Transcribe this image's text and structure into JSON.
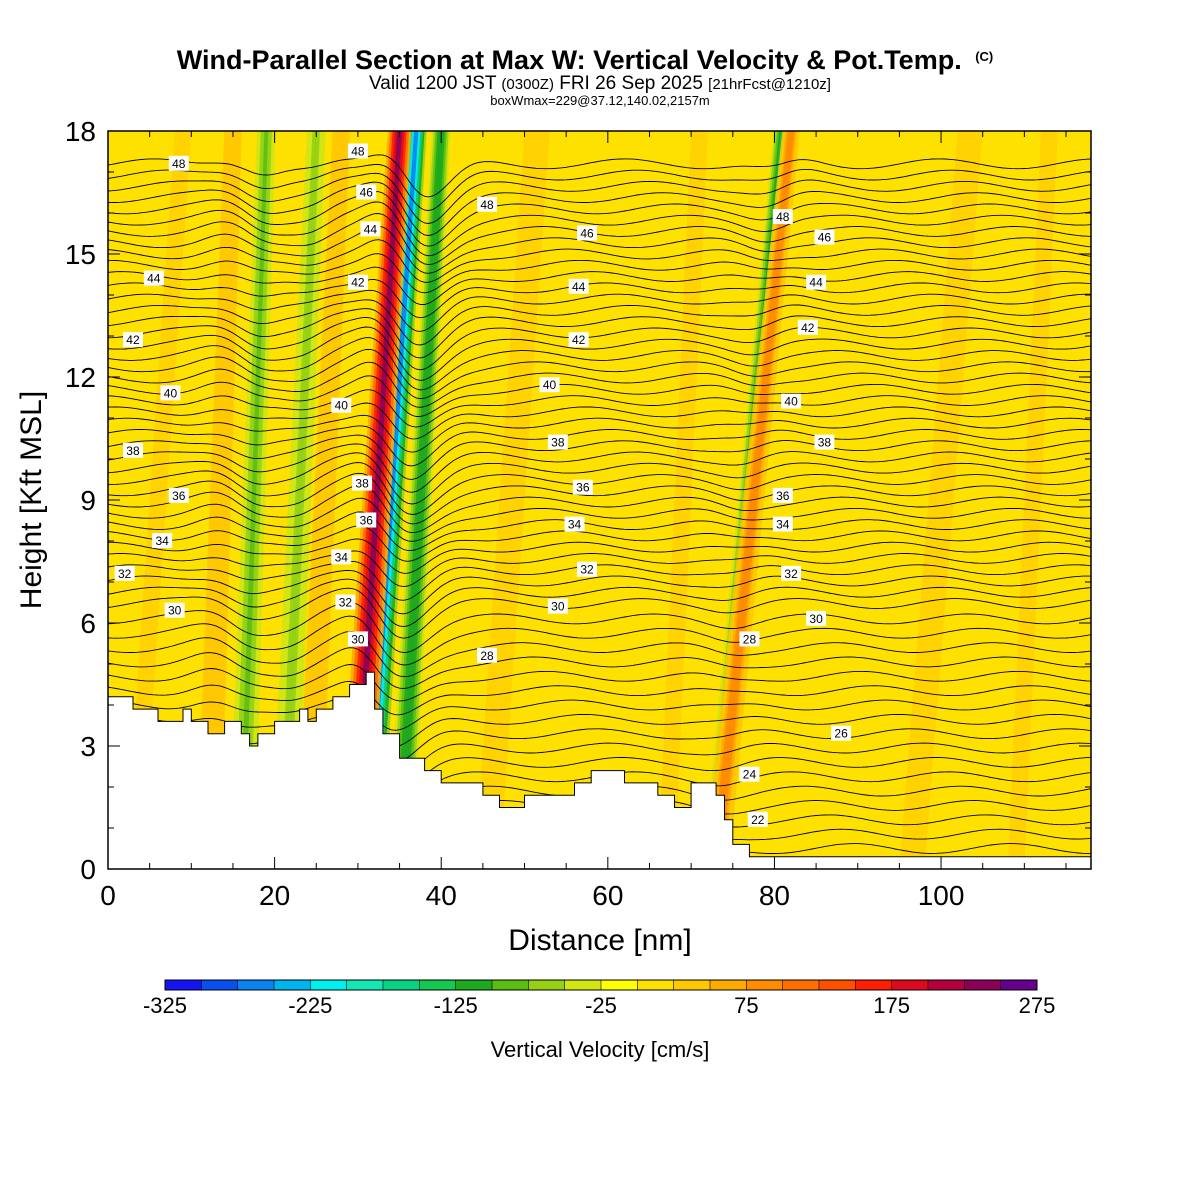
{
  "chart_data": {
    "type": "heatmap",
    "title": {
      "main": "Wind-Parallel Section at Max W: Vertical Velocity & Pot.Temp.",
      "copyright": "(C)",
      "valid_prefix": "Valid 1200 JST",
      "valid_utc": "(0300Z)",
      "valid_date": "FRI 26 Sep 2025",
      "forecast": "[21hrFcst@1210z]",
      "box_info": "boxWmax=229@37.12,140.02,2157m"
    },
    "xlabel": "Distance [nm]",
    "ylabel": "Height [Kft MSL]",
    "xlim": [
      0,
      118
    ],
    "ylim": [
      0,
      18
    ],
    "x_ticks": [
      0,
      20,
      40,
      60,
      80,
      100
    ],
    "y_ticks": [
      0,
      3,
      6,
      9,
      12,
      15,
      18
    ],
    "colorbar": {
      "title": "Vertical Velocity [cm/s]",
      "min": -325,
      "max": 275,
      "step": 25,
      "tick_labels": [
        "-325",
        "-225",
        "-125",
        "-25",
        "75",
        "175",
        "275"
      ],
      "tick_values": [
        -325,
        -225,
        -125,
        -25,
        75,
        175,
        275
      ],
      "colors": [
        "#1414f0",
        "#0a50f0",
        "#0a82f0",
        "#00b4f0",
        "#00f0f0",
        "#14e6b4",
        "#0ad282",
        "#14c850",
        "#1eaa1e",
        "#5abe14",
        "#96d214",
        "#d2e614",
        "#ffff00",
        "#ffe100",
        "#ffc800",
        "#ffaa00",
        "#ff8c00",
        "#ff6e00",
        "#ff5000",
        "#ff1e00",
        "#dc0a1e",
        "#b4003c",
        "#8c005a",
        "#64008c"
      ]
    },
    "updrafts": [
      {
        "x_bottom": 29.5,
        "x_top": 35.0,
        "peak_cm_s": 229,
        "height_kft": 7.1
      },
      {
        "x_bottom": 73.0,
        "x_top": 82.0,
        "peak_cm_s": 100,
        "height_kft": 5.0
      },
      {
        "x_bottom": 12.0,
        "x_top": 15.0,
        "peak_cm_s": 50,
        "height_kft": 10.0
      },
      {
        "x_bottom": 24.0,
        "x_top": 28.0,
        "peak_cm_s": 40,
        "height_kft": 10.0
      }
    ],
    "downdrafts": [
      {
        "x_bottom": 31.0,
        "x_top": 37.0,
        "peak_cm_s": -260,
        "height_kft": 12.0
      },
      {
        "x_bottom": 35.0,
        "x_top": 40.0,
        "peak_cm_s": -120,
        "height_kft": 10.0
      },
      {
        "x_bottom": 73.0,
        "x_top": 81.0,
        "peak_cm_s": -130,
        "height_kft": 10.0
      },
      {
        "x_bottom": 16.0,
        "x_top": 19.0,
        "peak_cm_s": -80,
        "height_kft": 10.0
      },
      {
        "x_bottom": 21.0,
        "x_top": 25.0,
        "peak_cm_s": -70,
        "height_kft": 10.0
      }
    ],
    "terrain": {
      "x": [
        0,
        3,
        3,
        6,
        6,
        9,
        9,
        10,
        10,
        12,
        12,
        14,
        14,
        16,
        16,
        17,
        17,
        18,
        18,
        20,
        20,
        23,
        23,
        24,
        24,
        25,
        25,
        27,
        27,
        29,
        29,
        31,
        31,
        32,
        32,
        33,
        33,
        35,
        35,
        38,
        38,
        40,
        40,
        45,
        45,
        47,
        47,
        50,
        50,
        56,
        56,
        58,
        58,
        62,
        62,
        66,
        66,
        68,
        68,
        70,
        70,
        73,
        73,
        74,
        74,
        75,
        75,
        77,
        77,
        80,
        80,
        118
      ],
      "y": [
        4.2,
        4.2,
        3.9,
        3.9,
        3.6,
        3.6,
        3.9,
        3.9,
        3.6,
        3.6,
        3.3,
        3.3,
        3.6,
        3.6,
        3.3,
        3.3,
        3.0,
        3.0,
        3.3,
        3.3,
        3.6,
        3.6,
        3.9,
        3.9,
        3.6,
        3.6,
        3.9,
        3.9,
        4.2,
        4.2,
        4.5,
        4.5,
        4.8,
        4.8,
        3.9,
        3.9,
        3.3,
        3.3,
        2.7,
        2.7,
        2.4,
        2.4,
        2.1,
        2.1,
        1.8,
        1.8,
        1.5,
        1.5,
        1.8,
        1.8,
        2.1,
        2.1,
        2.4,
        2.4,
        2.1,
        2.1,
        1.8,
        1.8,
        1.5,
        1.5,
        2.1,
        2.1,
        1.8,
        1.8,
        1.2,
        1.2,
        0.6,
        0.6,
        0.3,
        0.3,
        0.3,
        0.3
      ]
    },
    "theta_contours": [
      {
        "label": "22",
        "theta": 22,
        "label_x": 78.0,
        "label_y": 1.2
      },
      {
        "label": "24",
        "theta": 24,
        "label_x": 77.0,
        "label_y": 2.3
      },
      {
        "label": "26",
        "theta": 26,
        "label_x": 88.0,
        "label_y": 3.3
      },
      {
        "label": "28",
        "theta": 28,
        "label_x": 45.5,
        "label_y": 5.2
      },
      {
        "label": "28",
        "theta": 28,
        "label_x": 77.0,
        "label_y": 5.6
      },
      {
        "label": "30",
        "theta": 30,
        "label_x": 8.0,
        "label_y": 6.3
      },
      {
        "label": "30",
        "theta": 30,
        "label_x": 30.0,
        "label_y": 5.6
      },
      {
        "label": "30",
        "theta": 30,
        "label_x": 54.0,
        "label_y": 6.4
      },
      {
        "label": "30",
        "theta": 30,
        "label_x": 85.0,
        "label_y": 6.1
      },
      {
        "label": "32",
        "theta": 32,
        "label_x": 2.0,
        "label_y": 7.2
      },
      {
        "label": "32",
        "theta": 32,
        "label_x": 28.5,
        "label_y": 6.5
      },
      {
        "label": "32",
        "theta": 32,
        "label_x": 57.5,
        "label_y": 7.3
      },
      {
        "label": "32",
        "theta": 32,
        "label_x": 82.0,
        "label_y": 7.2
      },
      {
        "label": "34",
        "theta": 34,
        "label_x": 6.5,
        "label_y": 8.0
      },
      {
        "label": "34",
        "theta": 34,
        "label_x": 28.0,
        "label_y": 7.6
      },
      {
        "label": "34",
        "theta": 34,
        "label_x": 56.0,
        "label_y": 8.4
      },
      {
        "label": "34",
        "theta": 34,
        "label_x": 81.0,
        "label_y": 8.4
      },
      {
        "label": "36",
        "theta": 36,
        "label_x": 8.5,
        "label_y": 9.1
      },
      {
        "label": "36",
        "theta": 36,
        "label_x": 31.0,
        "label_y": 8.5
      },
      {
        "label": "36",
        "theta": 36,
        "label_x": 57.0,
        "label_y": 9.3
      },
      {
        "label": "36",
        "theta": 36,
        "label_x": 81.0,
        "label_y": 9.1
      },
      {
        "label": "38",
        "theta": 38,
        "label_x": 3.0,
        "label_y": 10.2
      },
      {
        "label": "38",
        "theta": 38,
        "label_x": 30.5,
        "label_y": 9.4
      },
      {
        "label": "38",
        "theta": 38,
        "label_x": 54.0,
        "label_y": 10.4
      },
      {
        "label": "38",
        "theta": 38,
        "label_x": 86.0,
        "label_y": 10.4
      },
      {
        "label": "40",
        "theta": 40,
        "label_x": 7.5,
        "label_y": 11.6
      },
      {
        "label": "40",
        "theta": 40,
        "label_x": 28.0,
        "label_y": 11.3
      },
      {
        "label": "40",
        "theta": 40,
        "label_x": 53.0,
        "label_y": 11.8
      },
      {
        "label": "40",
        "theta": 40,
        "label_x": 82.0,
        "label_y": 11.4
      },
      {
        "label": "42",
        "theta": 42,
        "label_x": 3.0,
        "label_y": 12.9
      },
      {
        "label": "42",
        "theta": 42,
        "label_x": 30.0,
        "label_y": 14.3
      },
      {
        "label": "42",
        "theta": 42,
        "label_x": 56.5,
        "label_y": 12.9
      },
      {
        "label": "42",
        "theta": 42,
        "label_x": 84.0,
        "label_y": 13.2
      },
      {
        "label": "44",
        "theta": 44,
        "label_x": 5.5,
        "label_y": 14.4
      },
      {
        "label": "44",
        "theta": 44,
        "label_x": 31.5,
        "label_y": 15.6
      },
      {
        "label": "44",
        "theta": 44,
        "label_x": 56.5,
        "label_y": 14.2
      },
      {
        "label": "44",
        "theta": 44,
        "label_x": 85.0,
        "label_y": 14.3
      },
      {
        "label": "46",
        "theta": 46,
        "label_x": 31.0,
        "label_y": 16.5
      },
      {
        "label": "46",
        "theta": 46,
        "label_x": 57.5,
        "label_y": 15.5
      },
      {
        "label": "46",
        "theta": 46,
        "label_x": 86.0,
        "label_y": 15.4
      },
      {
        "label": "48",
        "theta": 48,
        "label_x": 8.5,
        "label_y": 17.2
      },
      {
        "label": "48",
        "theta": 48,
        "label_x": 30.0,
        "label_y": 17.5
      },
      {
        "label": "48",
        "theta": 48,
        "label_x": 45.5,
        "label_y": 16.2
      },
      {
        "label": "48",
        "theta": 48,
        "label_x": 81.0,
        "label_y": 15.9
      }
    ]
  }
}
